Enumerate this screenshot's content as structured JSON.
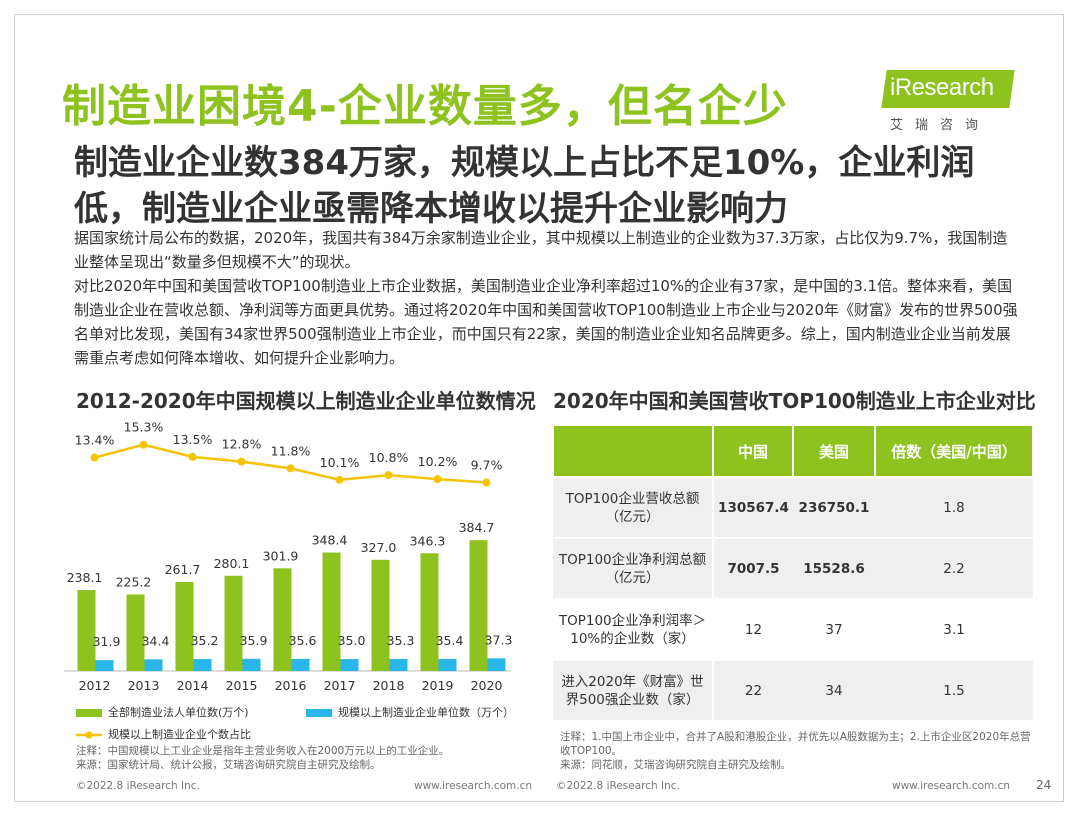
{
  "slide": {
    "title": "制造业困境4-企业数量多，但名企少",
    "logo_text": "iResearch",
    "logo_sub": "艾瑞咨询",
    "subtitle": "制造业企业数384万家，规模以上占比不足10%，企业利润低，制造业企业亟需降本增收以提升企业影响力",
    "paragraph_1": "据国家统计局公布的数据，2020年，我国共有384万余家制造业企业，其中规模以上制造业的企业数为37.3万家，占比仅为9.7%，我国制造业整体呈现出“数量多但规模不大”的现状。",
    "paragraph_2": "对比2020年中国和美国营收TOP100制造业上市企业数据，美国制造业企业净利率超过10%的企业有37家，是中国的3.1倍。整体来看，美国制造业企业在营收总额、净利润等方面更具优势。通过将2020年中国和美国营收TOP100制造业上市企业与2020年《财富》发布的世界500强名单对比发现，美国有34家世界500强制造业上市企业，而中国只有22家，美国的制造业企业知名品牌更多。综上，国内制造业企业当前发展需重点考虑如何降本增收、如何提升企业影响力。",
    "page_number": "24",
    "colors": {
      "accent": "#8dc21f",
      "blue": "#29b6e8",
      "yellow": "#f5c300"
    }
  },
  "left_section": {
    "title": "2012-2020年中国规模以上制造业企业单位数情况",
    "legend": {
      "series1": "全部制造业法人单位数(万个)",
      "series2": "规模以上制造业企业单位数（万个）",
      "series3": "规模以上制造业企业个数占比"
    },
    "note_1": "注释：中国规模以上工业企业是指年主营业务收入在2000万元以上的工业企业。",
    "note_2": "来源：国家统计局、统计公报，艾瑞咨询研究院自主研究及绘制。",
    "footer_left": "©2022.8 iResearch Inc.",
    "footer_right": "www.iresearch.com.cn"
  },
  "chart_data": {
    "type": "bar",
    "title": "2012-2020年中国规模以上制造业企业单位数情况",
    "categories": [
      "2012",
      "2013",
      "2014",
      "2015",
      "2016",
      "2017",
      "2018",
      "2019",
      "2020"
    ],
    "series": [
      {
        "name": "全部制造业法人单位数(万个)",
        "type": "bar",
        "color": "#8dc21f",
        "values": [
          238.1,
          225.2,
          261.7,
          280.1,
          301.9,
          348.4,
          327.0,
          346.3,
          384.7
        ],
        "labels": [
          "238.1",
          "225.2",
          "261.7",
          "280.1",
          "301.9",
          "348.4",
          "327.0",
          "346.3",
          "384.7"
        ]
      },
      {
        "name": "规模以上制造业企业单位数（万个）",
        "type": "bar",
        "color": "#29b6e8",
        "values": [
          31.9,
          34.4,
          35.2,
          35.9,
          35.6,
          35.0,
          35.3,
          35.4,
          37.3
        ],
        "labels": [
          "31.9",
          "34.4",
          "35.2",
          "35.9",
          "35.6",
          "35.0",
          "35.3",
          "35.4",
          "37.3"
        ]
      },
      {
        "name": "规模以上制造业企业个数占比",
        "type": "line",
        "color": "#f5c300",
        "values": [
          13.4,
          15.3,
          13.5,
          12.8,
          11.8,
          10.1,
          10.8,
          10.2,
          9.7
        ],
        "labels": [
          "13.4%",
          "15.3%",
          "13.5%",
          "12.8%",
          "11.8%",
          "10.1%",
          "10.8%",
          "10.2%",
          "9.7%"
        ]
      }
    ],
    "xlabel": "",
    "ylabel": "",
    "ylim": [
      0,
      400
    ],
    "legend": "bottom"
  },
  "right_section": {
    "title": "2020年中国和美国营收TOP100制造业上市企业对比",
    "table": {
      "headers": [
        "",
        "中国",
        "美国",
        "倍数（美国/中国）"
      ],
      "rows": [
        {
          "label_1": "TOP100企业营收总额",
          "label_2": "（亿元）",
          "china": "130567.4",
          "usa": "236750.1",
          "ratio": "1.8"
        },
        {
          "label_1": "TOP100企业净利润总额",
          "label_2": "（亿元）",
          "china": "7007.5",
          "usa": "15528.6",
          "ratio": "2.2"
        },
        {
          "label_1": "TOP100企业净利润率＞",
          "label_2": "10%的企业数（家）",
          "china": "12",
          "usa": "37",
          "ratio": "3.1"
        },
        {
          "label_1": "进入2020年《财富》世",
          "label_2": "界500强企业数（家）",
          "china": "22",
          "usa": "34",
          "ratio": "1.5"
        }
      ]
    },
    "note_1": "注释：1.中国上市企业中，合并了A股和港股企业，并优先以A股数据为主；2.上市企业区2020年总营收TOP100。",
    "note_2": "来源：同花顺，艾瑞咨询研究院自主研究及绘制。",
    "footer_left": "©2022.8 iResearch Inc.",
    "footer_right": "www.iresearch.com.cn"
  }
}
